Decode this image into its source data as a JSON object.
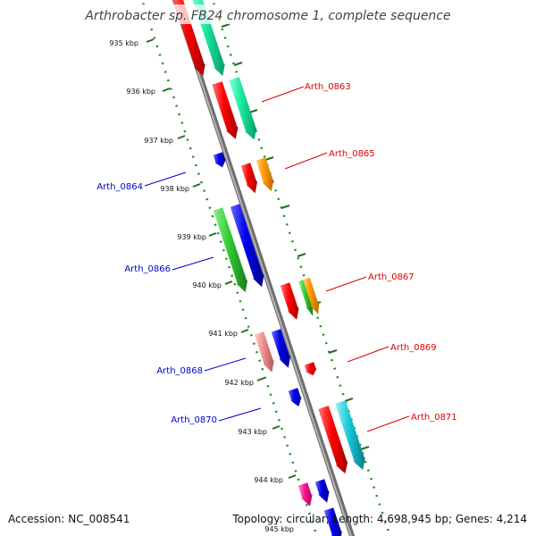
{
  "title": "Arthrobacter sp. FB24 chromosome 1, complete sequence",
  "footer": {
    "accession": "Accession: NC_008541",
    "summary": "Topology: circular; Length: 4,698,945 bp; Genes: 4,214"
  },
  "ticks": [
    "935 kbp",
    "936 kbp",
    "937 kbp",
    "938 kbp",
    "939 kbp",
    "940 kbp",
    "941 kbp",
    "942 kbp",
    "943 kbp",
    "944 kbp",
    "945 kbp"
  ],
  "gene_labels": {
    "right": [
      "Arth_0863",
      "Arth_0865",
      "Arth_0867",
      "Arth_0869",
      "Arth_0871"
    ],
    "left": [
      "Arth_0864",
      "Arth_0866",
      "Arth_0868",
      "Arth_0870"
    ]
  },
  "colors": {
    "backbone": "#8a8a8a",
    "dotted_guides": "#1f8f1f",
    "right_label": "#e00000",
    "left_label": "#0000cc",
    "red": "#ff0000",
    "teal_green": "#19e8a0",
    "orange": "#ff9900",
    "green": "#33cc33",
    "blue": "#0000ee",
    "pink": "#f09090",
    "magenta": "#ff1493",
    "cyan": "#19c8d8"
  }
}
